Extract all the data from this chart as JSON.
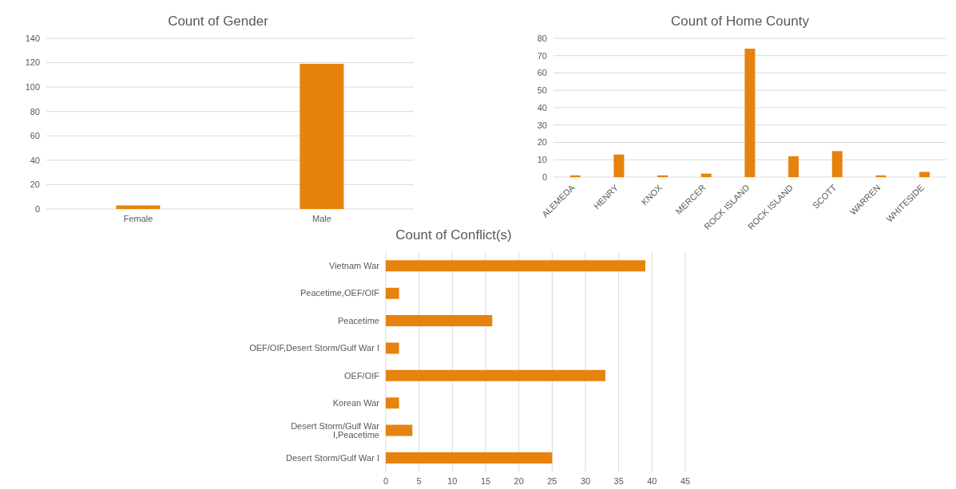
{
  "chart_data": [
    {
      "type": "bar",
      "title": "Count of Gender",
      "categories": [
        "Female",
        "Male"
      ],
      "values": [
        3,
        119
      ],
      "color": "#e6820e",
      "ylim": [
        0,
        140
      ],
      "yticks": [
        0,
        20,
        40,
        60,
        80,
        100,
        120,
        140
      ],
      "grid": "y"
    },
    {
      "type": "bar",
      "title": "Count of Home County",
      "categories": [
        "ALEMEDA",
        "HENRY",
        "KNOX",
        "MERCER",
        "ROCK ISLAND",
        "ROCK ISLAND",
        "SCOTT",
        "WARREN",
        "WHITESIDE"
      ],
      "values": [
        1,
        13,
        1,
        2,
        74,
        12,
        15,
        1,
        3
      ],
      "color": "#e6820e",
      "ylim": [
        0,
        80
      ],
      "yticks": [
        0,
        10,
        20,
        30,
        40,
        50,
        60,
        70,
        80
      ],
      "grid": "y"
    },
    {
      "type": "bar",
      "orientation": "horizontal",
      "title": "Count of Conflict(s)",
      "categories": [
        "Vietnam War",
        "Peacetime,OEF/OIF",
        "Peacetime",
        "OEF/OIF,Desert Storm/Gulf War I",
        "OEF/OIF",
        "Korean War",
        "Desert Storm/Gulf War I,Peacetime",
        "Desert Storm/Gulf War I"
      ],
      "values": [
        39,
        2,
        16,
        2,
        33,
        2,
        4,
        25
      ],
      "color": "#e6820e",
      "xlim": [
        0,
        45
      ],
      "xticks": [
        0,
        5,
        10,
        15,
        20,
        25,
        30,
        35,
        40,
        45
      ],
      "grid": "x"
    }
  ]
}
